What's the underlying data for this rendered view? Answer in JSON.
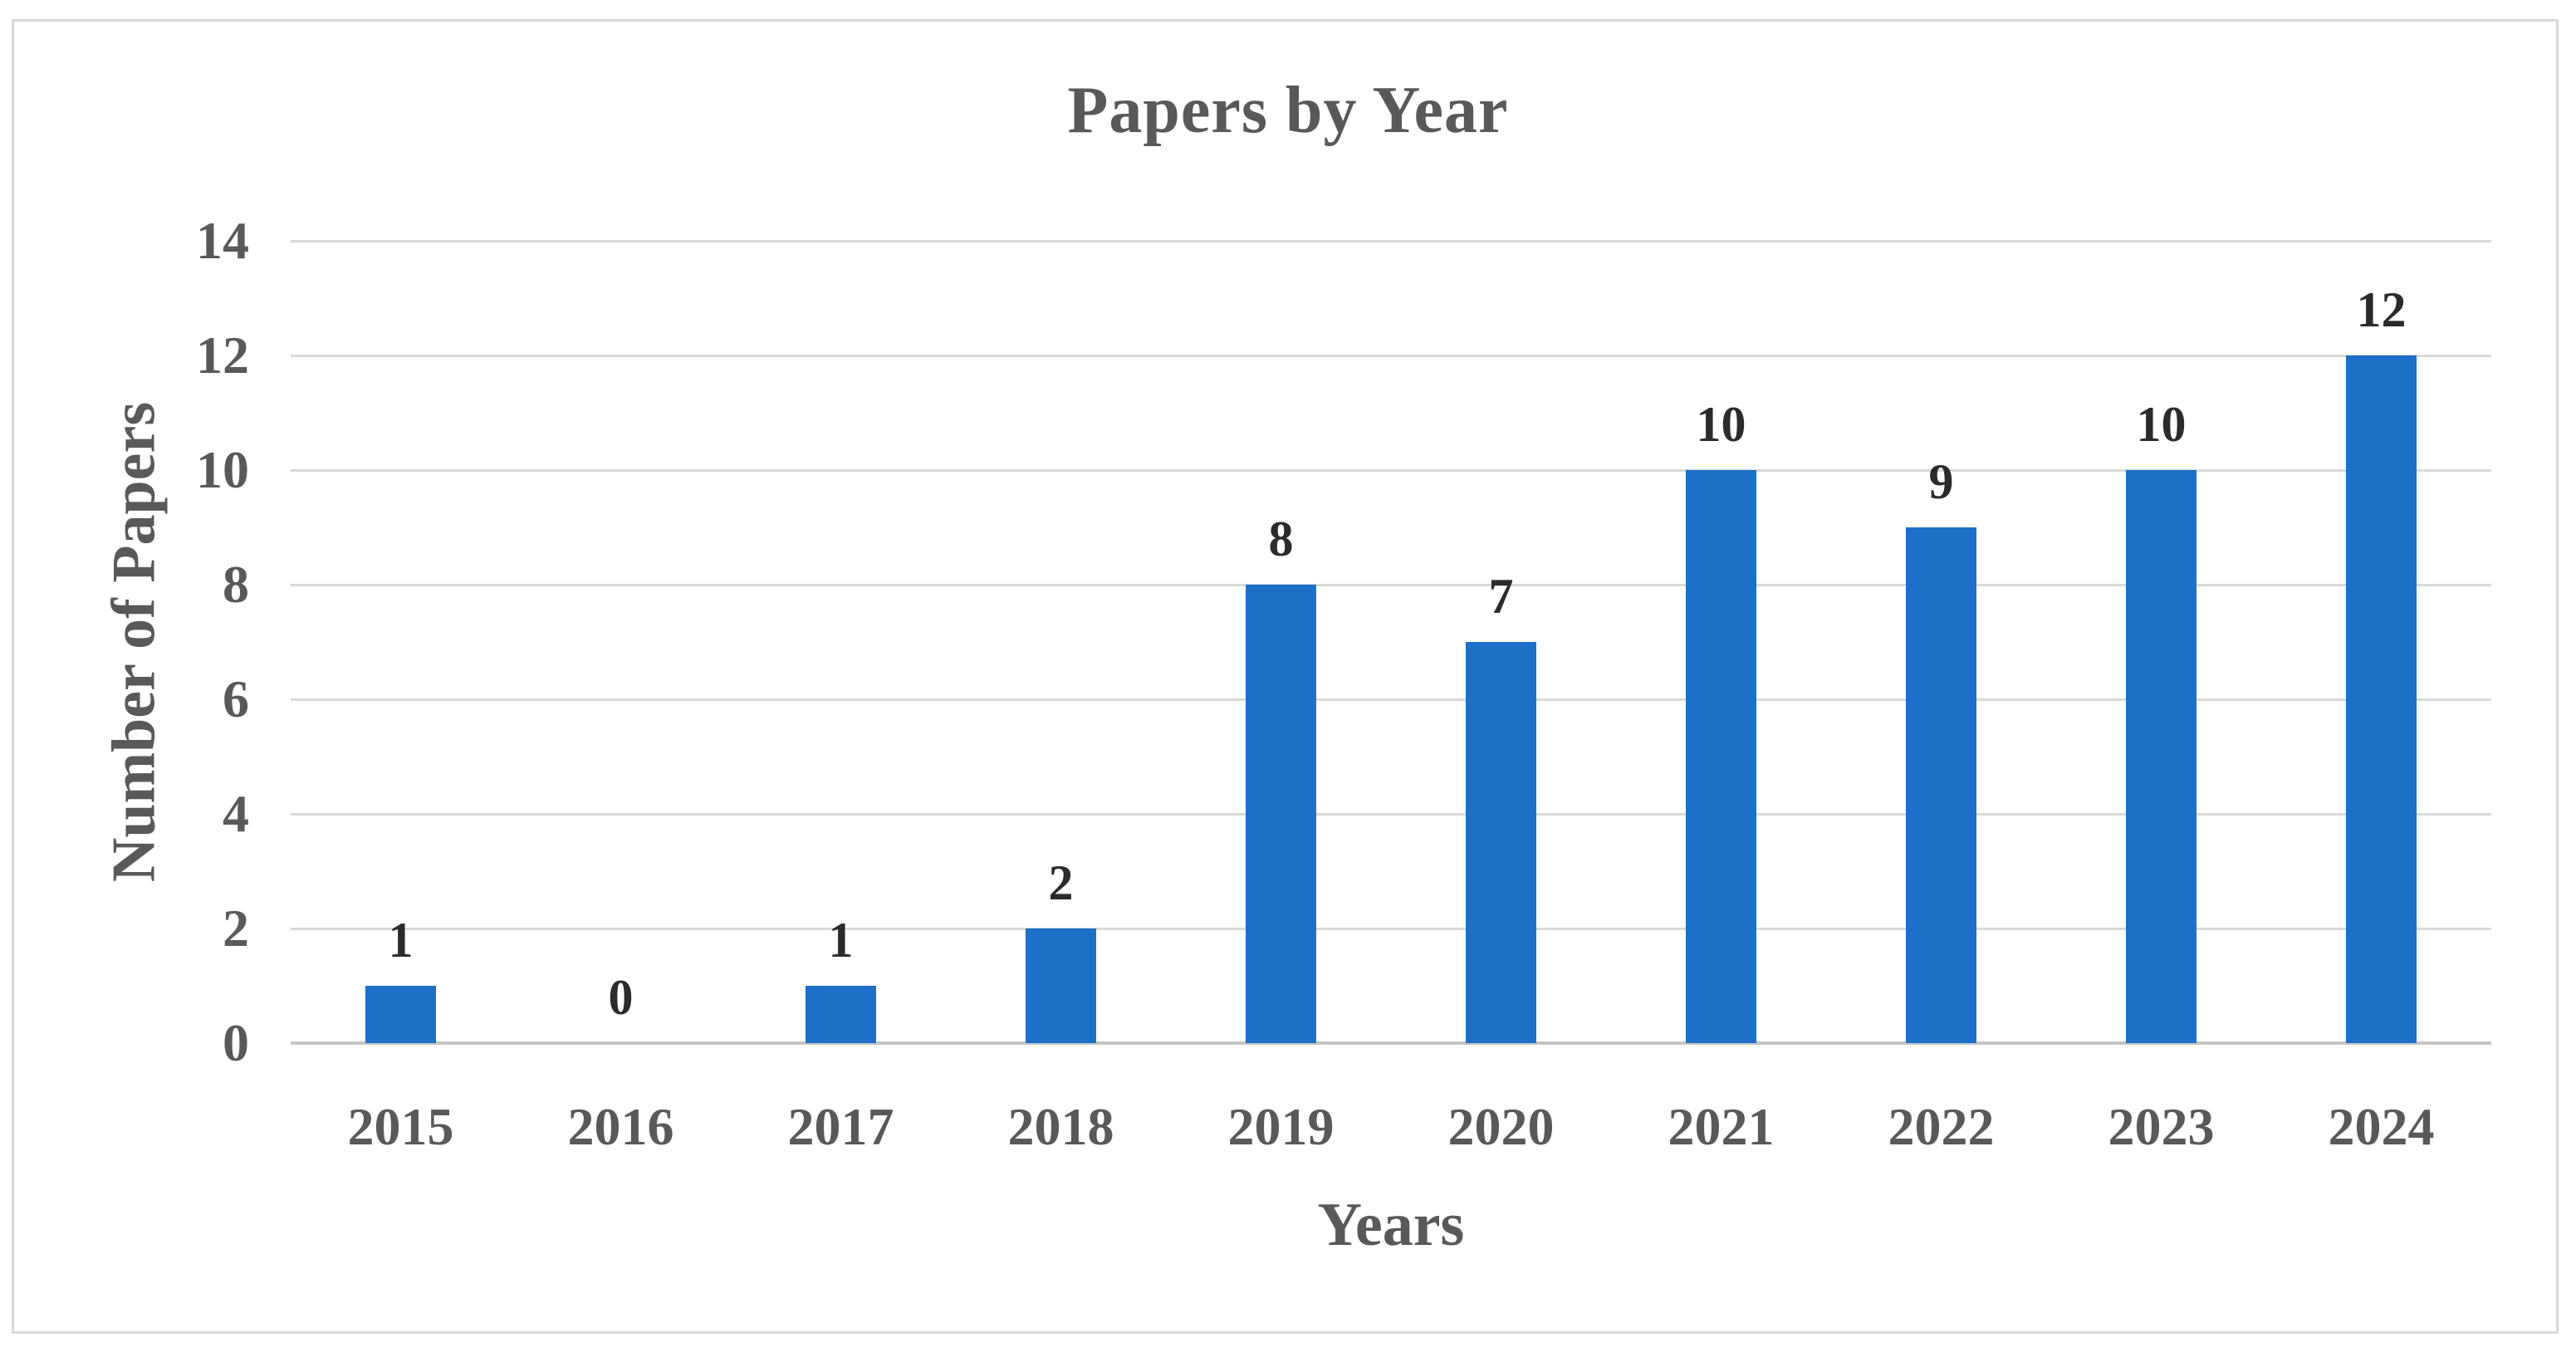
{
  "chart_data": {
    "type": "bar",
    "title": "Papers by Year",
    "xlabel": "Years",
    "ylabel": "Number of Papers",
    "categories": [
      "2015",
      "2016",
      "2017",
      "2018",
      "2019",
      "2020",
      "2021",
      "2022",
      "2023",
      "2024"
    ],
    "values": [
      1,
      0,
      1,
      2,
      8,
      7,
      10,
      9,
      10,
      12
    ],
    "data_labels": [
      "1",
      "0",
      "1",
      "2",
      "8",
      "7",
      "10",
      "9",
      "10",
      "12"
    ],
    "ylim": [
      0,
      14
    ],
    "yticks": [
      0,
      2,
      4,
      6,
      8,
      10,
      12,
      14
    ],
    "grid": "horizontal-on",
    "legend": "none",
    "colors": {
      "bar": "#1C70C8",
      "gridline": "#D9D9D9",
      "axis_line": "#C4C4C4",
      "frame_border": "#D9D9D9",
      "title_text": "#595959",
      "tick_text": "#595959",
      "data_label_text": "#2B2B2B",
      "background": "#FFFFFF"
    }
  }
}
